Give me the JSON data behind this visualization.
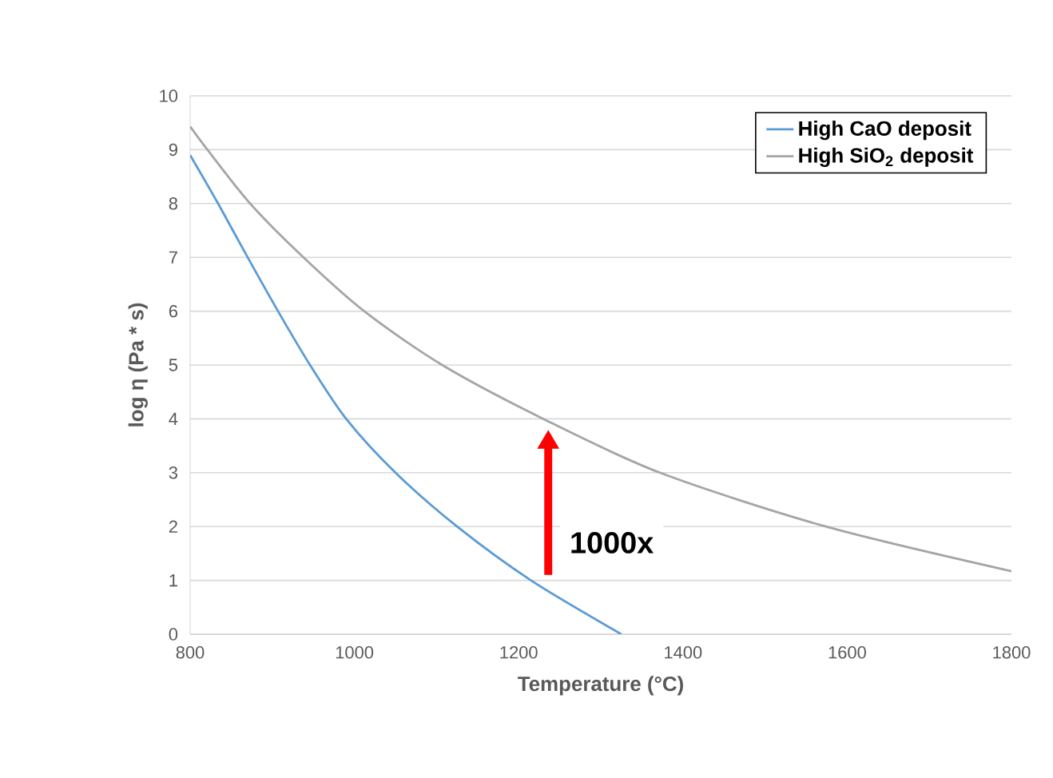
{
  "chart_data": {
    "type": "line",
    "xlabel": "Temperature (°C)",
    "ylabel": "log η (Pa * s)",
    "xlim": [
      800,
      1800
    ],
    "xticks": [
      800,
      1000,
      1200,
      1400,
      1600,
      1800
    ],
    "ylim": [
      0,
      10
    ],
    "yticks": [
      0,
      1,
      2,
      3,
      4,
      5,
      6,
      7,
      8,
      9,
      10
    ],
    "grid": "y",
    "legend": "top right",
    "marker": "none",
    "line_style": "solid",
    "series": [
      {
        "name": "High CaO deposit",
        "color": "#5b9bd5",
        "x": [
          800,
          834,
          870,
          907,
          946,
          990,
          1050,
          1125,
          1215,
          1325
        ],
        "values": [
          8.9,
          8,
          7,
          6,
          5,
          4,
          3,
          2,
          1,
          0
        ]
      },
      {
        "name": "High SiO$_{2}$ deposit",
        "color": "#a5a5a5",
        "x": [
          800,
          821,
          873,
          938,
          1012,
          1107,
          1230,
          1372,
          1574,
          1800
        ],
        "values": [
          9.43,
          9,
          8,
          7,
          6,
          5,
          4,
          3,
          2,
          1.17
        ]
      }
    ],
    "annotations": [
      "1000x"
    ]
  }
}
